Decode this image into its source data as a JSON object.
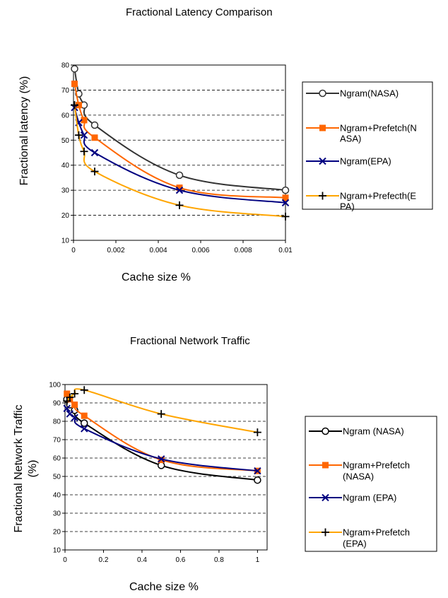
{
  "chart_data": [
    {
      "type": "line",
      "title": "Fractional Latency Comparison",
      "xlabel": "Cache size %",
      "ylabel": "Fractional latency (%)",
      "xlim": [
        0,
        0.01
      ],
      "ylim": [
        10,
        80
      ],
      "xticks": [
        "0",
        "0.002",
        "0.004",
        "0.006",
        "0.008",
        "0.01"
      ],
      "yticks": [
        "10",
        "20",
        "30",
        "40",
        "50",
        "60",
        "70",
        "80"
      ],
      "grid": "horizontal-dashed",
      "legend_position": "right",
      "series": [
        {
          "name": "Ngram(NASA)",
          "color": "#333333",
          "marker": "circle",
          "x": [
            5e-05,
            0.00025,
            0.0005,
            0.001,
            0.005,
            0.01
          ],
          "y": [
            78.5,
            68.5,
            64,
            56,
            36,
            30
          ]
        },
        {
          "name": "Ngram+Prefetch(NASA)",
          "color": "#FF6600",
          "marker": "square",
          "x": [
            5e-05,
            0.00025,
            0.0005,
            0.001,
            0.005,
            0.01
          ],
          "y": [
            72.5,
            64,
            58,
            51,
            31,
            27
          ]
        },
        {
          "name": "Ngram(EPA)",
          "color": "#000080",
          "marker": "x",
          "x": [
            5e-05,
            0.00025,
            0.0005,
            0.001,
            0.005,
            0.01
          ],
          "y": [
            63,
            57,
            52,
            45,
            30,
            25
          ]
        },
        {
          "name": "Ngram+Prefecth(EPA)",
          "color": "#FFA500",
          "marker": "plus",
          "x": [
            5e-05,
            0.00025,
            0.0005,
            0.001,
            0.005,
            0.01
          ],
          "y": [
            64,
            52,
            45.5,
            37.5,
            24,
            19.5
          ]
        }
      ],
      "legend_lines": [
        [
          "Ngram(NASA)"
        ],
        [
          "Ngram+Prefetch(N",
          "ASA)"
        ],
        [
          "Ngram(EPA)"
        ],
        [
          "Ngram+Prefecth(E",
          "PA)"
        ]
      ]
    },
    {
      "type": "line",
      "title": "Fractional Network Traffic",
      "xlabel": "Cache size %",
      "ylabel": "Fractional Network Traffic (%)",
      "ylabel_lines": [
        "Fractional Network Traffic",
        "(%)"
      ],
      "xlim": [
        0,
        1.05
      ],
      "ylim": [
        10,
        100
      ],
      "xticks": [
        "0",
        "0.2",
        "0.4",
        "0.6",
        "0.8",
        "1"
      ],
      "yticks": [
        "10",
        "20",
        "30",
        "40",
        "50",
        "60",
        "70",
        "80",
        "90",
        "100"
      ],
      "grid": "horizontal-dashed",
      "legend_position": "right",
      "series": [
        {
          "name": "Ngram (NASA)",
          "color": "#000000",
          "marker": "circle",
          "x": [
            0.01,
            0.025,
            0.05,
            0.1,
            0.5,
            1
          ],
          "y": [
            92,
            89,
            86,
            79,
            56,
            48
          ]
        },
        {
          "name": "Ngram+Prefetch (NASA)",
          "color": "#FF6600",
          "marker": "square",
          "x": [
            0.01,
            0.025,
            0.05,
            0.1,
            0.5,
            1
          ],
          "y": [
            95,
            92,
            89,
            83,
            59,
            53
          ]
        },
        {
          "name": "Ngram (EPA)",
          "color": "#000080",
          "marker": "x",
          "x": [
            0.01,
            0.025,
            0.05,
            0.1,
            0.5,
            1
          ],
          "y": [
            87,
            84,
            82,
            76,
            59.5,
            53
          ]
        },
        {
          "name": "Ngram+Prefetch (EPA)",
          "color": "#FFA500",
          "marker": "plus",
          "x": [
            0.01,
            0.025,
            0.05,
            0.1,
            0.5,
            1
          ],
          "y": [
            91,
            93,
            95,
            97,
            84,
            74
          ]
        }
      ],
      "legend_lines": [
        [
          "Ngram (NASA)"
        ],
        [
          "Ngram+Prefetch",
          "(NASA)"
        ],
        [
          "Ngram (EPA)"
        ],
        [
          "Ngram+Prefetch",
          "(EPA)"
        ]
      ]
    }
  ]
}
